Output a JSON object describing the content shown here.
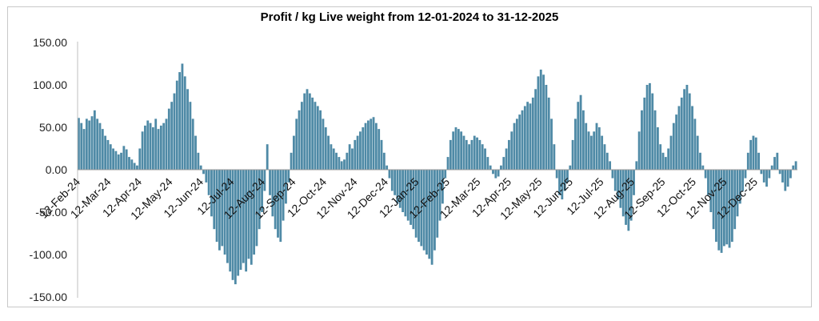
{
  "chart_data": {
    "type": "bar",
    "title": "Profit / kg Live weight from 12-01-2024 to 31-12-2025",
    "xlabel": "",
    "ylabel": "",
    "ylim": [
      -150,
      150
    ],
    "y_ticks": [
      "150.00",
      "100.00",
      "50.00",
      "0.00",
      "-50.00",
      "-100.00",
      "-150.00"
    ],
    "y_tick_values": [
      150,
      100,
      50,
      0,
      -50,
      -100,
      -150
    ],
    "x_ticks": [
      "12-Feb-24",
      "12-Mar-24",
      "12-Apr-24",
      "12-May-24",
      "12-Jun-24",
      "12-Jul-24",
      "12-Aug-24",
      "12-Sep-24",
      "12-Oct-24",
      "12-Nov-24",
      "12-Dec-24",
      "12-Jan-25",
      "12-Feb-25",
      "12-Mar-25",
      "12-Apr-25",
      "12-May-25",
      "12-Jun-25",
      "12-Jul-25",
      "12-Aug-25",
      "12-Sep-25",
      "12-Oct-25",
      "12-Nov-25",
      "12-Dec-25"
    ],
    "bar_color": "#4f8aa6",
    "series": [
      {
        "name": "Profit / kg Live weight",
        "values": [
          61,
          55,
          48,
          60,
          58,
          63,
          70,
          60,
          55,
          48,
          40,
          35,
          30,
          25,
          22,
          18,
          20,
          28,
          24,
          15,
          12,
          8,
          5,
          25,
          45,
          52,
          58,
          55,
          50,
          60,
          48,
          52,
          55,
          60,
          72,
          80,
          90,
          105,
          115,
          125,
          110,
          95,
          80,
          60,
          40,
          20,
          5,
          -5,
          -15,
          -30,
          -55,
          -70,
          -85,
          -95,
          -90,
          -100,
          -110,
          -120,
          -130,
          -135,
          -125,
          -118,
          -110,
          -120,
          -105,
          -112,
          -100,
          -90,
          -70,
          -50,
          -25,
          30,
          -30,
          -55,
          -70,
          -80,
          -85,
          -60,
          -40,
          -15,
          20,
          40,
          60,
          70,
          80,
          90,
          95,
          90,
          85,
          80,
          75,
          70,
          60,
          50,
          40,
          30,
          25,
          20,
          15,
          10,
          12,
          20,
          30,
          25,
          35,
          40,
          45,
          50,
          55,
          58,
          60,
          62,
          55,
          48,
          35,
          20,
          5,
          -10,
          -25,
          -30,
          -40,
          -45,
          -50,
          -55,
          -60,
          -65,
          -70,
          -80,
          -85,
          -90,
          -95,
          -100,
          -105,
          -112,
          -95,
          -80,
          -60,
          -40,
          -10,
          15,
          35,
          45,
          50,
          48,
          45,
          40,
          35,
          30,
          35,
          40,
          38,
          35,
          30,
          25,
          15,
          5,
          -5,
          -10,
          -8,
          5,
          15,
          25,
          35,
          45,
          55,
          60,
          65,
          70,
          75,
          80,
          78,
          85,
          95,
          110,
          118,
          112,
          100,
          85,
          60,
          30,
          -10,
          -30,
          -35,
          -25,
          -15,
          5,
          35,
          60,
          80,
          88,
          70,
          55,
          45,
          40,
          45,
          55,
          50,
          40,
          30,
          20,
          10,
          -10,
          -25,
          -35,
          -45,
          -55,
          -65,
          -72,
          -60,
          -30,
          10,
          45,
          70,
          85,
          100,
          102,
          90,
          70,
          50,
          30,
          20,
          15,
          25,
          40,
          55,
          65,
          75,
          85,
          95,
          100,
          90,
          75,
          60,
          40,
          20,
          5,
          -10,
          -30,
          -50,
          -70,
          -85,
          -95,
          -98,
          -90,
          -88,
          -92,
          -85,
          -70,
          -55,
          -40,
          -25,
          -10,
          20,
          35,
          40,
          38,
          20,
          -5,
          -15,
          -20,
          -10,
          5,
          15,
          20,
          -5,
          -15,
          -25,
          -20,
          -10,
          5,
          10
        ]
      }
    ]
  }
}
